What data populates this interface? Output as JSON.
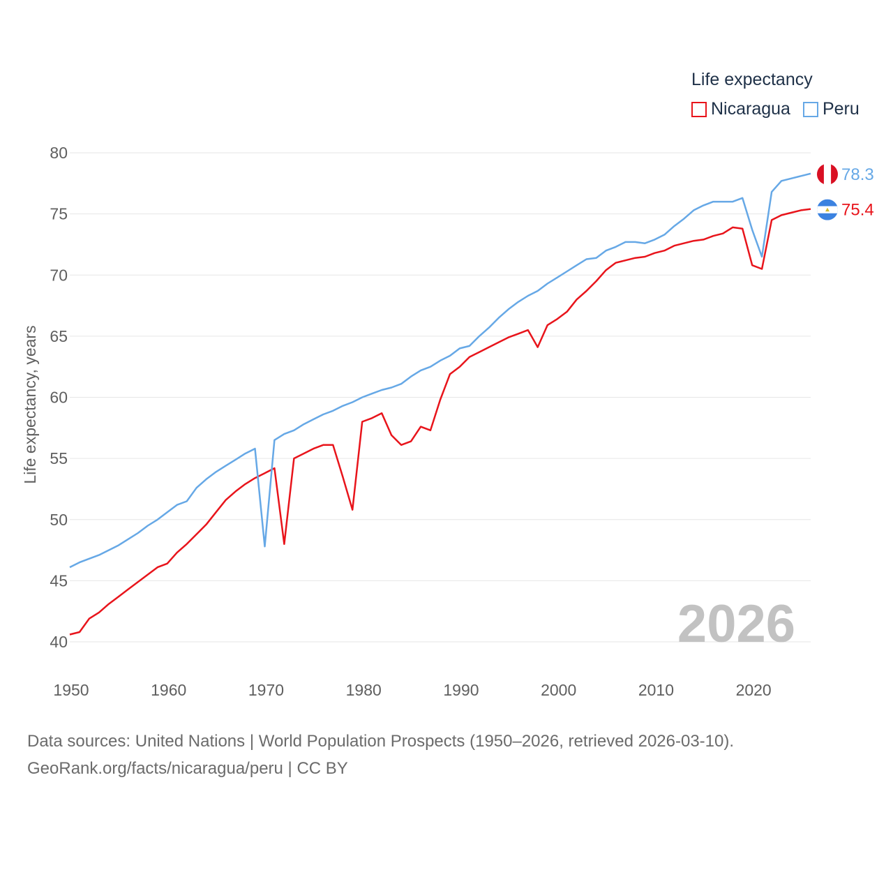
{
  "chart_data": {
    "type": "line",
    "legend_title": "Life expectancy",
    "ylabel": "Life expectancy, years",
    "ylim": [
      40,
      80
    ],
    "yticks": [
      40,
      45,
      50,
      55,
      60,
      65,
      70,
      75,
      80
    ],
    "xlim": [
      1950,
      2026
    ],
    "xticks": [
      1950,
      1960,
      1970,
      1980,
      1990,
      2000,
      2010,
      2020
    ],
    "year_label": "2026",
    "grid": true,
    "x_start": 1950,
    "series": [
      {
        "name": "Nicaragua",
        "color": "#e8141b",
        "end_label": "75.4",
        "flag": "flag-nicaragua",
        "values": [
          40.6,
          40.8,
          41.9,
          42.4,
          43.1,
          43.7,
          44.3,
          44.9,
          45.5,
          46.1,
          46.4,
          47.3,
          48.0,
          48.8,
          49.6,
          50.6,
          51.6,
          52.3,
          52.9,
          53.4,
          53.8,
          54.2,
          48.0,
          55.0,
          55.4,
          55.8,
          56.1,
          56.1,
          53.5,
          50.8,
          58.0,
          58.3,
          58.7,
          56.9,
          56.1,
          56.4,
          57.6,
          57.3,
          59.8,
          61.9,
          62.5,
          63.3,
          63.7,
          64.1,
          64.5,
          64.9,
          65.2,
          65.5,
          64.1,
          65.9,
          66.4,
          67.0,
          68.0,
          68.7,
          69.5,
          70.4,
          71.0,
          71.2,
          71.4,
          71.5,
          71.8,
          72.0,
          72.4,
          72.6,
          72.8,
          72.9,
          73.2,
          73.4,
          73.9,
          73.8,
          70.8,
          70.5,
          74.5,
          74.9,
          75.1,
          75.3,
          75.4
        ]
      },
      {
        "name": "Peru",
        "color": "#66a8e6",
        "end_label": "78.3",
        "flag": "flag-peru",
        "values": [
          46.1,
          46.5,
          46.8,
          47.1,
          47.5,
          47.9,
          48.4,
          48.9,
          49.5,
          50.0,
          50.6,
          51.2,
          51.5,
          52.6,
          53.3,
          53.9,
          54.4,
          54.9,
          55.4,
          55.8,
          47.8,
          56.5,
          57.0,
          57.3,
          57.8,
          58.2,
          58.6,
          58.9,
          59.3,
          59.6,
          60.0,
          60.3,
          60.6,
          60.8,
          61.1,
          61.7,
          62.2,
          62.5,
          63.0,
          63.4,
          64.0,
          64.2,
          65.0,
          65.7,
          66.5,
          67.2,
          67.8,
          68.3,
          68.7,
          69.3,
          69.8,
          70.3,
          70.8,
          71.3,
          71.4,
          72.0,
          72.3,
          72.7,
          72.7,
          72.6,
          72.9,
          73.3,
          74.0,
          74.6,
          75.3,
          75.7,
          76.0,
          76.0,
          76.0,
          76.3,
          73.7,
          71.5,
          76.8,
          77.7,
          77.9,
          78.1,
          78.3
        ]
      }
    ]
  },
  "source": {
    "line1": "Data sources: United Nations | World Population Prospects (1950–2026, retrieved 2026-03-10).",
    "line2": "GeoRank.org/facts/nicaragua/peru | CC BY"
  }
}
